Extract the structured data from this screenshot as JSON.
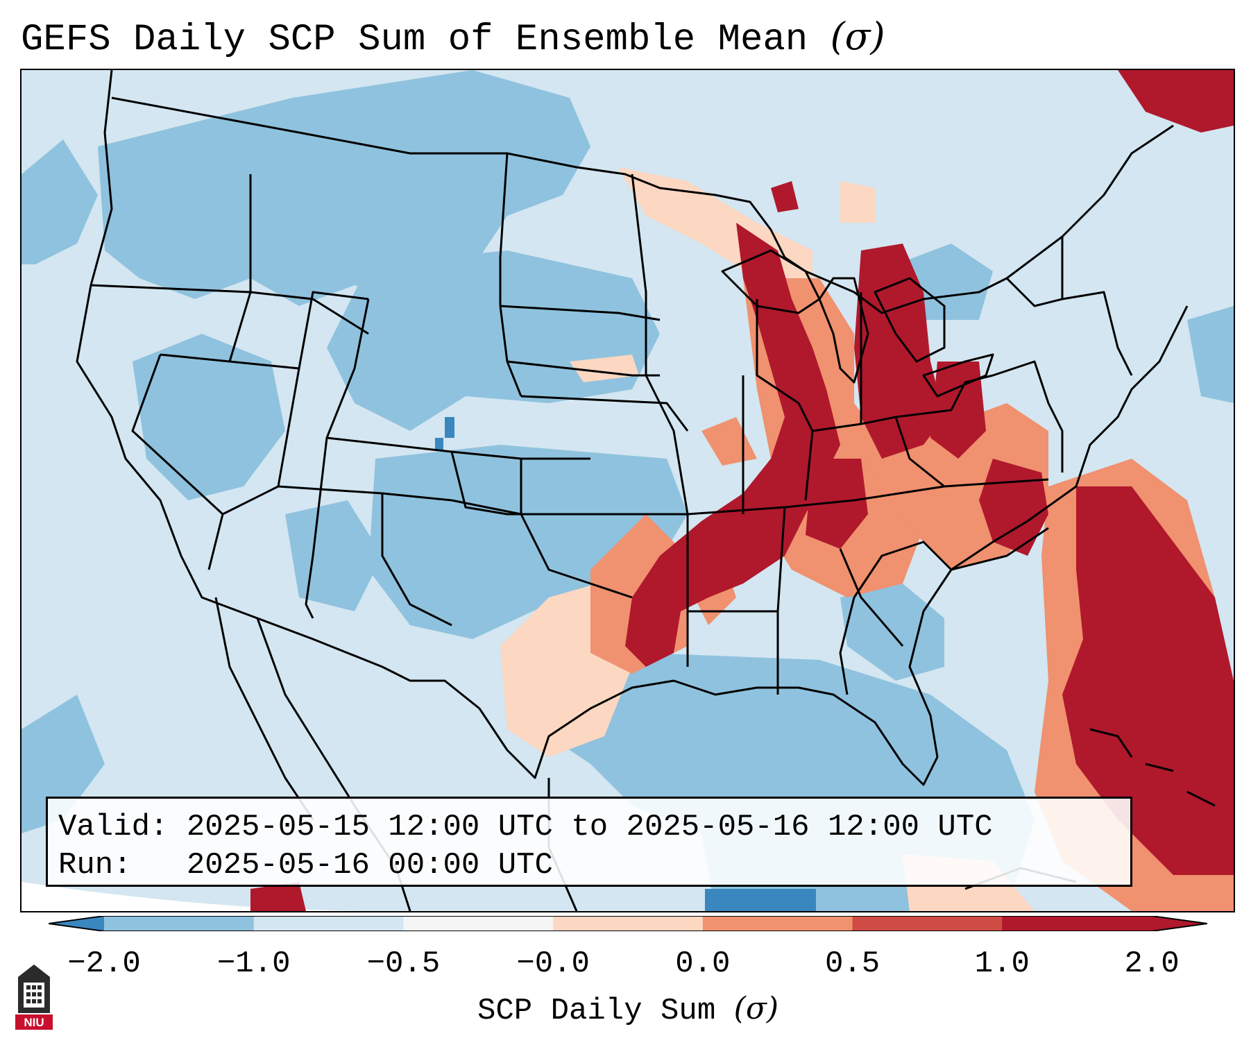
{
  "title": "GEFS Daily SCP Sum of Ensemble Mean",
  "title_symbol": "(σ)",
  "valid_label": "Valid:",
  "valid_value": "2025-05-15 12:00 UTC to 2025-05-16 12:00 UTC",
  "run_label": "Run:",
  "run_value": "2025-05-16 00:00 UTC",
  "colorbar": {
    "label": "SCP Daily Sum",
    "label_symbol": "(σ)",
    "ticks": [
      "−2.0",
      "−1.0",
      "−0.5",
      "−0.0",
      "0.0",
      "0.5",
      "1.0",
      "2.0"
    ],
    "colors": [
      "#3a87c0",
      "#8fc2de",
      "#d3e6f1",
      "#f5f5f5",
      "#fcd7c2",
      "#f0916f",
      "#cf4c45",
      "#b0182c"
    ],
    "extend": "both"
  },
  "map": {
    "region": "Contiguous United States",
    "background_color": "#d3e6f1",
    "high_anomaly_color": "#b0182c"
  },
  "logo": {
    "text": "NIU",
    "color": "#c8102e"
  }
}
